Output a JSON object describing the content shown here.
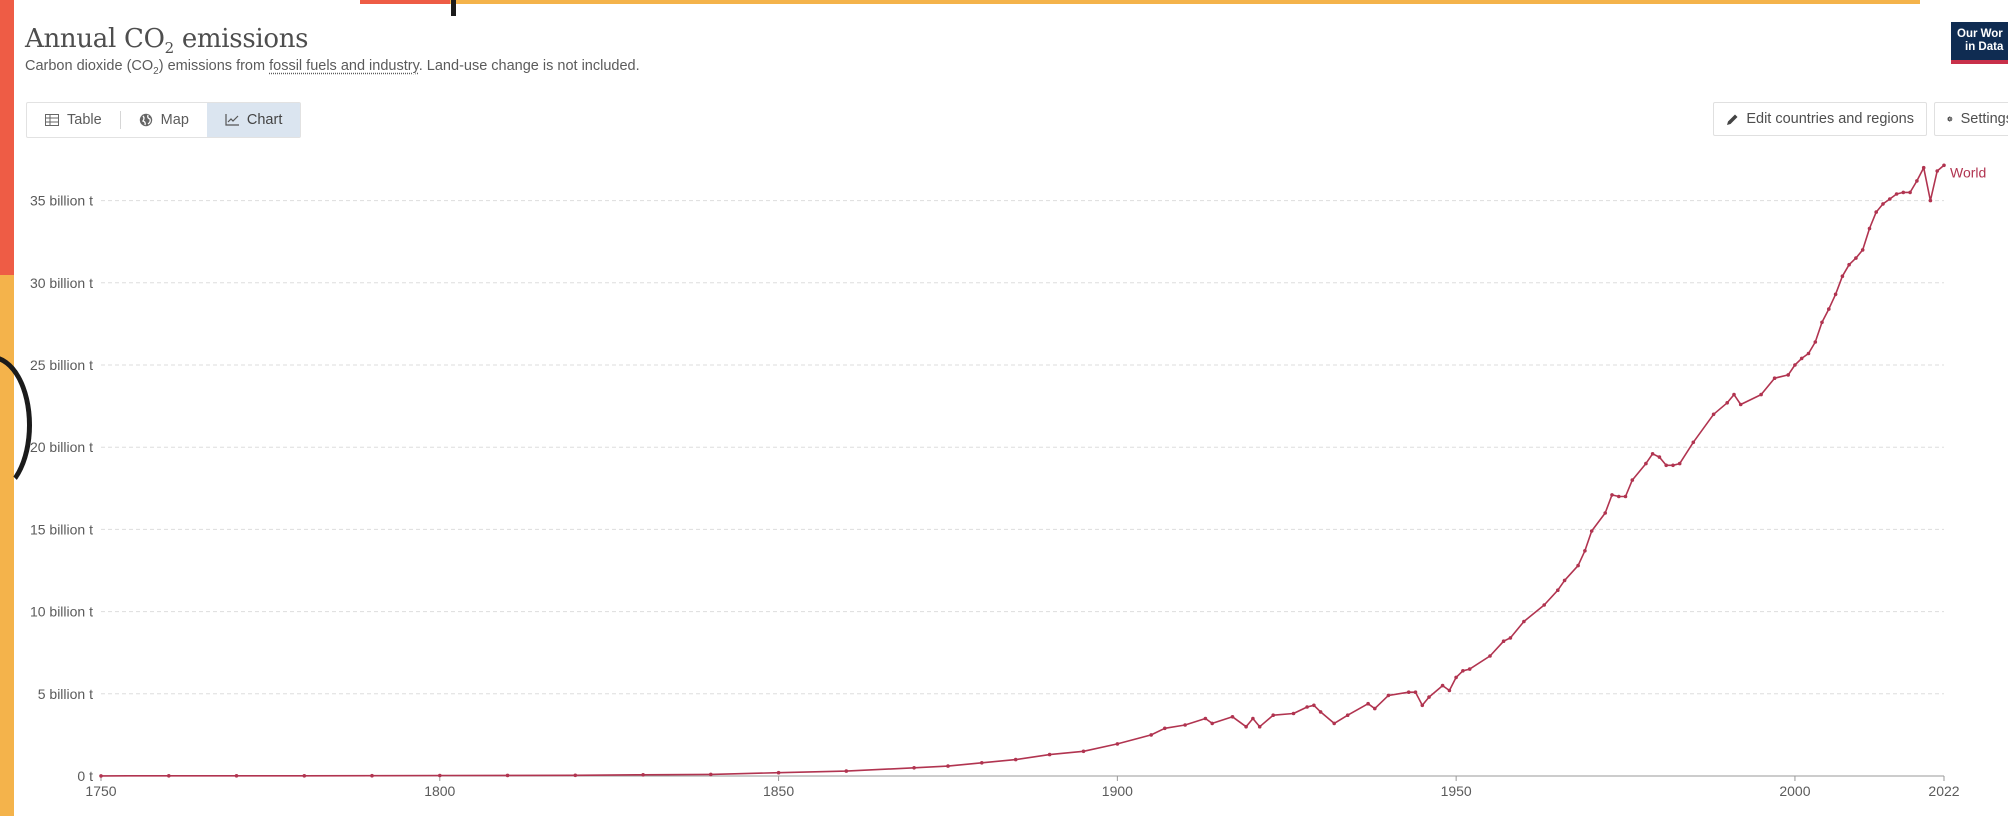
{
  "header": {
    "title": "Annual CO",
    "title_sub": "2",
    "title_rest": " emissions",
    "subtitle_pre": "Carbon dioxide (CO",
    "subtitle_sub": "2",
    "subtitle_mid": ") emissions from ",
    "subtitle_link": "fossil fuels and industry",
    "subtitle_post": ". Land-use change is not included."
  },
  "logo": {
    "line1": "Our Wor",
    "line2": "in Data"
  },
  "tabs": [
    {
      "label": "Table",
      "icon": "table-icon"
    },
    {
      "label": "Map",
      "icon": "globe-icon"
    },
    {
      "label": "Chart",
      "icon": "line-chart-icon",
      "active": true
    }
  ],
  "toolbar": {
    "edit_label": "Edit countries and regions",
    "settings_label": "Settings"
  },
  "colors": {
    "series": "#b13450",
    "text": "#5b5b5b",
    "grid": "#dddddd",
    "active_tab": "#dbe5f0"
  },
  "chart_data": {
    "type": "line",
    "title": "Annual CO2 emissions",
    "xlim": [
      1750,
      2022
    ],
    "ylim": [
      0,
      37.15
    ],
    "y_unit": "billion t",
    "x_ticks": [
      "1750",
      "1800",
      "1850",
      "1900",
      "1950",
      "2000",
      "2022"
    ],
    "y_ticks": [
      "0 t",
      "5 billion t",
      "10 billion t",
      "15 billion t",
      "20 billion t",
      "25 billion t",
      "30 billion t",
      "35 billion t"
    ],
    "y_tick_values": [
      0,
      5,
      10,
      15,
      20,
      25,
      30,
      35
    ],
    "grid": true,
    "series": [
      {
        "name": "World",
        "color": "#b13450",
        "points": [
          [
            1750,
            0.009
          ],
          [
            1760,
            0.01
          ],
          [
            1770,
            0.012
          ],
          [
            1780,
            0.015
          ],
          [
            1790,
            0.02
          ],
          [
            1800,
            0.028
          ],
          [
            1810,
            0.036
          ],
          [
            1820,
            0.045
          ],
          [
            1830,
            0.07
          ],
          [
            1840,
            0.1
          ],
          [
            1850,
            0.2
          ],
          [
            1860,
            0.3
          ],
          [
            1870,
            0.5
          ],
          [
            1875,
            0.6
          ],
          [
            1880,
            0.8
          ],
          [
            1885,
            1.0
          ],
          [
            1890,
            1.3
          ],
          [
            1895,
            1.5
          ],
          [
            1900,
            1.95
          ],
          [
            1905,
            2.5
          ],
          [
            1907,
            2.9
          ],
          [
            1910,
            3.1
          ],
          [
            1913,
            3.5
          ],
          [
            1914,
            3.2
          ],
          [
            1917,
            3.6
          ],
          [
            1919,
            3.0
          ],
          [
            1920,
            3.5
          ],
          [
            1921,
            3.0
          ],
          [
            1923,
            3.7
          ],
          [
            1926,
            3.8
          ],
          [
            1928,
            4.2
          ],
          [
            1929,
            4.3
          ],
          [
            1930,
            3.9
          ],
          [
            1932,
            3.2
          ],
          [
            1934,
            3.7
          ],
          [
            1937,
            4.4
          ],
          [
            1938,
            4.1
          ],
          [
            1940,
            4.9
          ],
          [
            1943,
            5.1
          ],
          [
            1944,
            5.1
          ],
          [
            1945,
            4.3
          ],
          [
            1946,
            4.8
          ],
          [
            1948,
            5.5
          ],
          [
            1949,
            5.2
          ],
          [
            1950,
            6.0
          ],
          [
            1951,
            6.4
          ],
          [
            1952,
            6.5
          ],
          [
            1955,
            7.3
          ],
          [
            1957,
            8.2
          ],
          [
            1958,
            8.4
          ],
          [
            1960,
            9.4
          ],
          [
            1963,
            10.4
          ],
          [
            1965,
            11.3
          ],
          [
            1966,
            11.9
          ],
          [
            1968,
            12.8
          ],
          [
            1969,
            13.7
          ],
          [
            1970,
            14.9
          ],
          [
            1972,
            16.0
          ],
          [
            1973,
            17.1
          ],
          [
            1974,
            17.0
          ],
          [
            1975,
            17.0
          ],
          [
            1976,
            18.0
          ],
          [
            1978,
            19.0
          ],
          [
            1979,
            19.6
          ],
          [
            1980,
            19.4
          ],
          [
            1981,
            18.9
          ],
          [
            1982,
            18.9
          ],
          [
            1983,
            19.0
          ],
          [
            1985,
            20.3
          ],
          [
            1988,
            22.0
          ],
          [
            1990,
            22.7
          ],
          [
            1991,
            23.2
          ],
          [
            1992,
            22.6
          ],
          [
            1995,
            23.2
          ],
          [
            1997,
            24.2
          ],
          [
            1999,
            24.4
          ],
          [
            2000,
            25.0
          ],
          [
            2001,
            25.4
          ],
          [
            2002,
            25.7
          ],
          [
            2003,
            26.4
          ],
          [
            2004,
            27.6
          ],
          [
            2005,
            28.4
          ],
          [
            2006,
            29.3
          ],
          [
            2007,
            30.4
          ],
          [
            2008,
            31.1
          ],
          [
            2009,
            31.5
          ],
          [
            2010,
            32.0
          ],
          [
            2011,
            33.3
          ],
          [
            2012,
            34.3
          ],
          [
            2013,
            34.8
          ],
          [
            2014,
            35.1
          ],
          [
            2015,
            35.4
          ],
          [
            2016,
            35.5
          ],
          [
            2017,
            35.5
          ],
          [
            2018,
            36.2
          ],
          [
            2019,
            37.0
          ],
          [
            2020,
            35.0
          ],
          [
            2021,
            36.8
          ],
          [
            2022,
            37.15
          ]
        ]
      }
    ]
  }
}
